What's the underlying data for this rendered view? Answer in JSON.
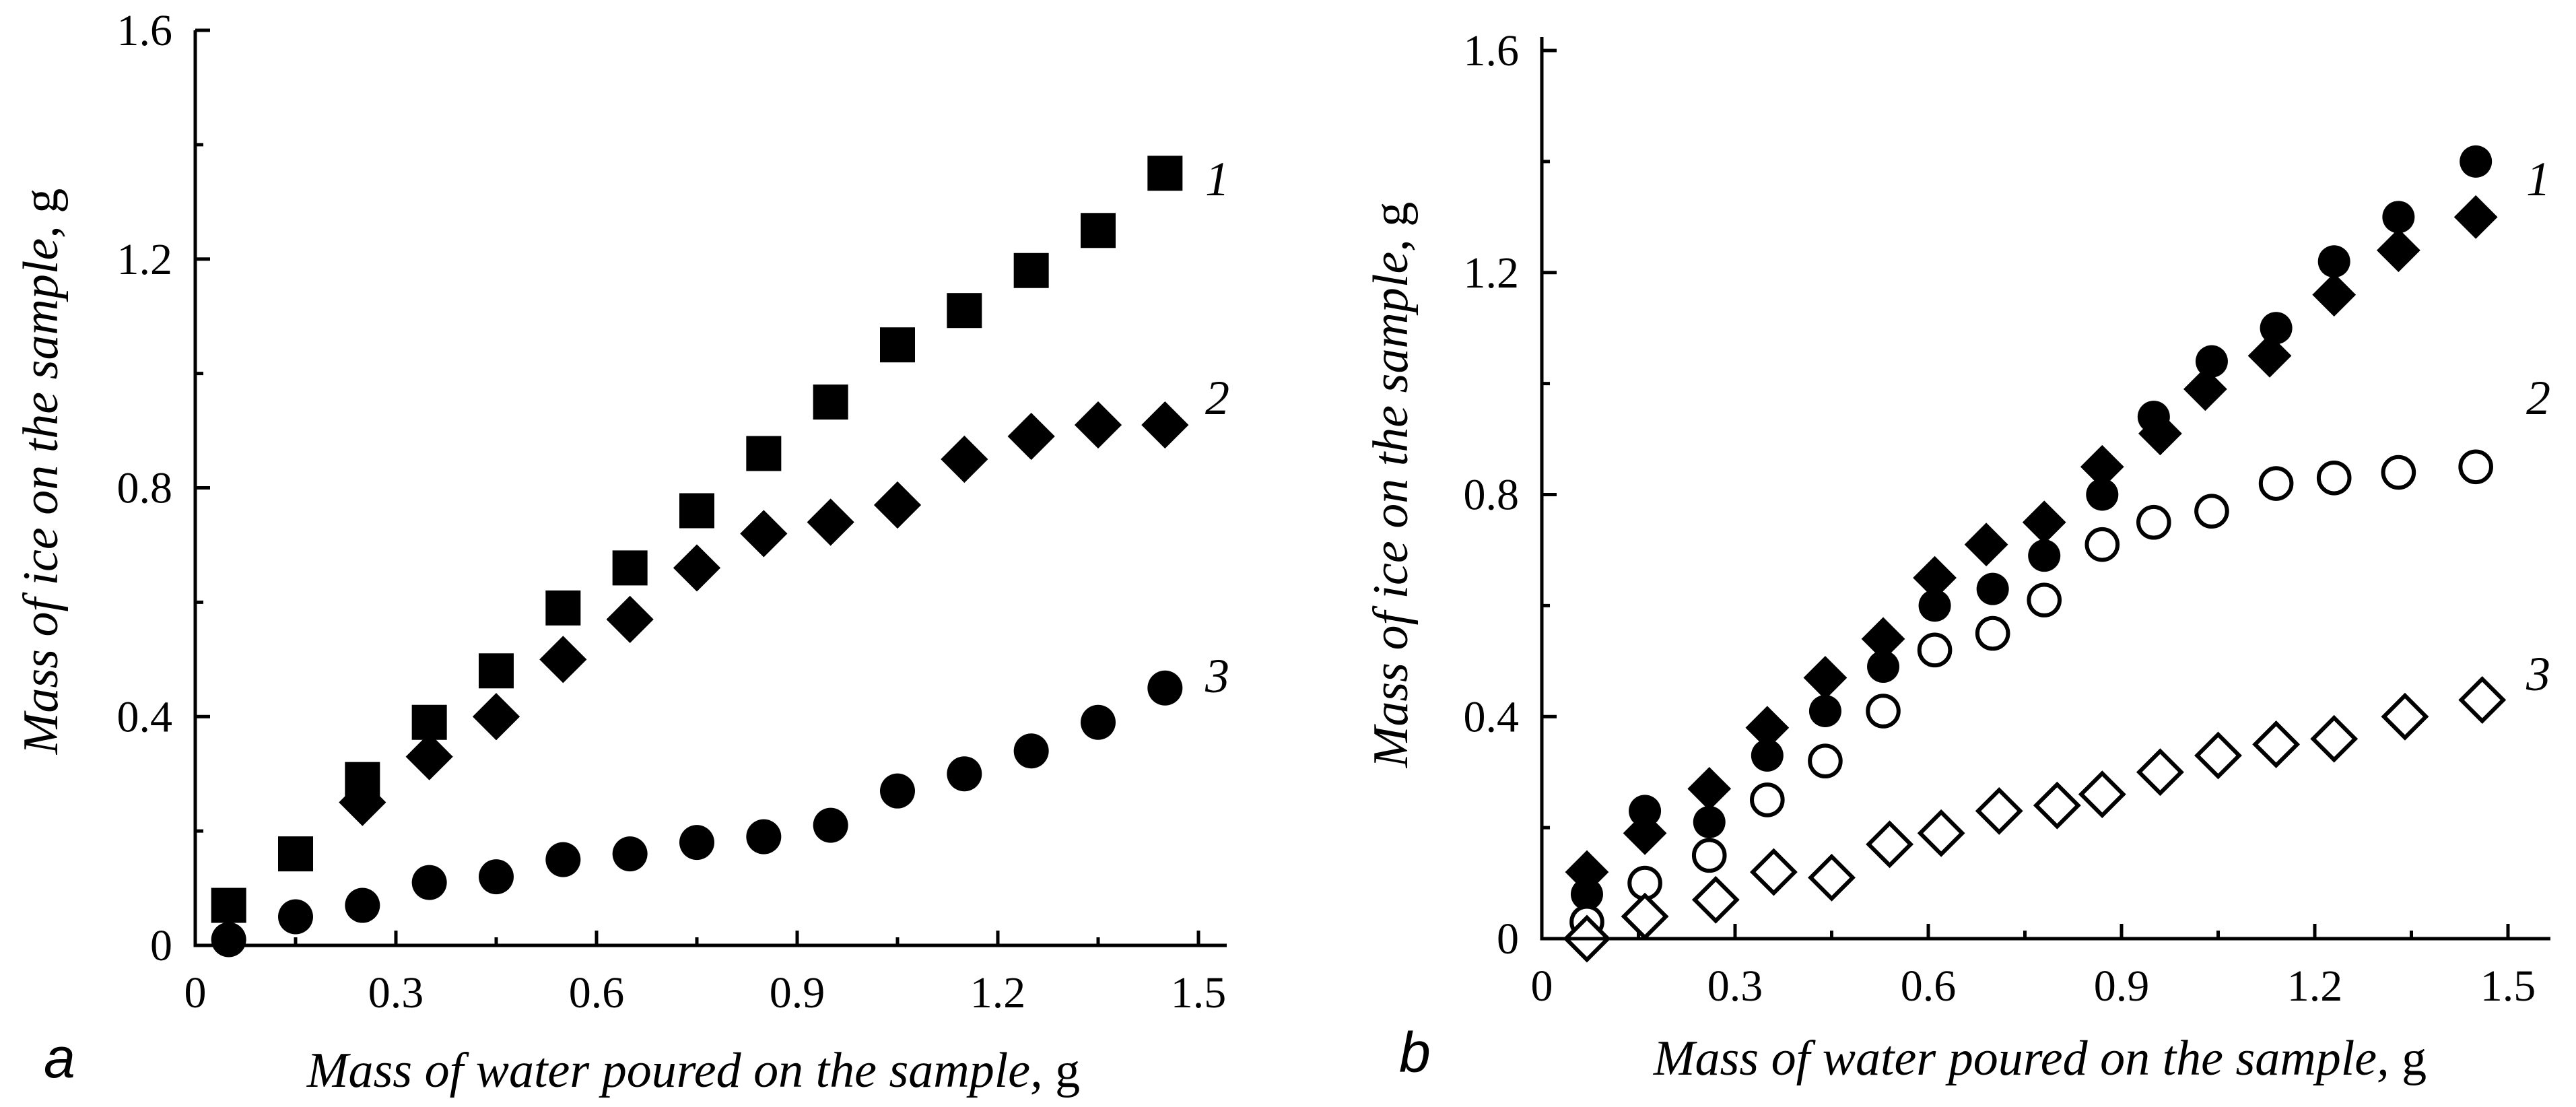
{
  "chart_data": [
    {
      "panel": "a",
      "type": "scatter",
      "xlabel": "Mass of water poured on the sample",
      "xunit": "g",
      "ylabel": "Mass of ice on the sample",
      "yunit": "g",
      "xlim": [
        0,
        1.55
      ],
      "ylim": [
        0,
        1.6
      ],
      "xticks": [
        0,
        0.3,
        0.6,
        0.9,
        1.2,
        1.5
      ],
      "xtick_labels": [
        "0",
        "0.3",
        "0.6",
        "0.9",
        "1.2",
        "1.5"
      ],
      "yticks": [
        0,
        0.4,
        0.8,
        1.2,
        1.6
      ],
      "ytick_labels": [
        "0",
        "0.4",
        "0.8",
        "1.2",
        "1.6"
      ],
      "series": [
        {
          "name": "1",
          "marker": "square-filled",
          "x": [
            0.05,
            0.15,
            0.25,
            0.35,
            0.45,
            0.55,
            0.65,
            0.75,
            0.85,
            0.95,
            1.05,
            1.15,
            1.25,
            1.35,
            1.45
          ],
          "y": [
            0.07,
            0.16,
            0.29,
            0.39,
            0.48,
            0.59,
            0.66,
            0.76,
            0.86,
            0.95,
            1.05,
            1.11,
            1.18,
            1.25,
            1.35
          ]
        },
        {
          "name": "2",
          "marker": "diamond-filled",
          "x": [
            0.25,
            0.35,
            0.45,
            0.55,
            0.65,
            0.75,
            0.85,
            0.95,
            1.05,
            1.15,
            1.25,
            1.35,
            1.45
          ],
          "y": [
            0.25,
            0.33,
            0.4,
            0.5,
            0.57,
            0.66,
            0.72,
            0.74,
            0.77,
            0.85,
            0.89,
            0.91,
            0.91
          ]
        },
        {
          "name": "3",
          "marker": "circle-filled",
          "x": [
            0.05,
            0.15,
            0.25,
            0.35,
            0.45,
            0.55,
            0.65,
            0.75,
            0.85,
            0.95,
            1.05,
            1.15,
            1.25,
            1.35,
            1.45
          ],
          "y": [
            0.01,
            0.05,
            0.07,
            0.11,
            0.12,
            0.15,
            0.16,
            0.18,
            0.19,
            0.21,
            0.27,
            0.3,
            0.34,
            0.39,
            0.45
          ]
        }
      ]
    },
    {
      "panel": "b",
      "type": "scatter",
      "xlabel": "Mass of water poured on the sample",
      "xunit": "g",
      "ylabel": "Mass of ice on the sample",
      "yunit": "g",
      "xlim": [
        0,
        1.55
      ],
      "ylim": [
        0,
        1.6
      ],
      "xticks": [
        0,
        0.3,
        0.6,
        0.9,
        1.2,
        1.5
      ],
      "xtick_labels": [
        "0",
        "0.3",
        "0.6",
        "0.9",
        "1.2",
        "1.5"
      ],
      "yticks": [
        0,
        0.4,
        0.8,
        1.2,
        1.6
      ],
      "ytick_labels": [
        "0",
        "0.4",
        "0.8",
        "1.2",
        "1.6"
      ],
      "series": [
        {
          "name": "1",
          "marker": "circle-filled",
          "x": [
            0.07,
            0.16,
            0.26,
            0.35,
            0.44,
            0.53,
            0.61,
            0.7,
            0.78,
            0.87,
            0.95,
            1.04,
            1.14,
            1.23,
            1.33,
            1.45
          ],
          "y": [
            0.08,
            0.23,
            0.21,
            0.33,
            0.41,
            0.49,
            0.6,
            0.63,
            0.69,
            0.8,
            0.94,
            1.04,
            1.1,
            1.22,
            1.3,
            1.4
          ]
        },
        {
          "name": "1",
          "marker": "diamond-filled",
          "x": [
            0.07,
            0.16,
            0.26,
            0.35,
            0.44,
            0.53,
            0.61,
            0.69,
            0.78,
            0.87,
            0.96,
            1.03,
            1.13,
            1.23,
            1.33,
            1.45
          ],
          "y": [
            0.12,
            0.19,
            0.27,
            0.38,
            0.47,
            0.54,
            0.65,
            0.71,
            0.75,
            0.85,
            0.91,
            0.99,
            1.05,
            1.16,
            1.24,
            1.3
          ]
        },
        {
          "name": "2",
          "marker": "circle-open",
          "x": [
            0.07,
            0.16,
            0.26,
            0.35,
            0.44,
            0.53,
            0.61,
            0.7,
            0.78,
            0.87,
            0.95,
            1.04,
            1.14,
            1.23,
            1.33,
            1.45
          ],
          "y": [
            0.03,
            0.1,
            0.15,
            0.25,
            0.32,
            0.41,
            0.52,
            0.55,
            0.61,
            0.71,
            0.75,
            0.77,
            0.82,
            0.83,
            0.84,
            0.85
          ]
        },
        {
          "name": "3",
          "marker": "diamond-open",
          "x": [
            0.07,
            0.16,
            0.27,
            0.36,
            0.45,
            0.54,
            0.62,
            0.71,
            0.8,
            0.87,
            0.96,
            1.05,
            1.14,
            1.23,
            1.34,
            1.46
          ],
          "y": [
            0.0,
            0.04,
            0.07,
            0.12,
            0.11,
            0.17,
            0.19,
            0.23,
            0.24,
            0.26,
            0.3,
            0.33,
            0.35,
            0.36,
            0.4,
            0.43
          ]
        }
      ]
    }
  ],
  "panels": [
    {
      "letter": "a",
      "series_labels": [
        "1",
        "2",
        "3"
      ]
    },
    {
      "letter": "b",
      "series_labels": [
        "1",
        "2",
        "3"
      ]
    }
  ]
}
